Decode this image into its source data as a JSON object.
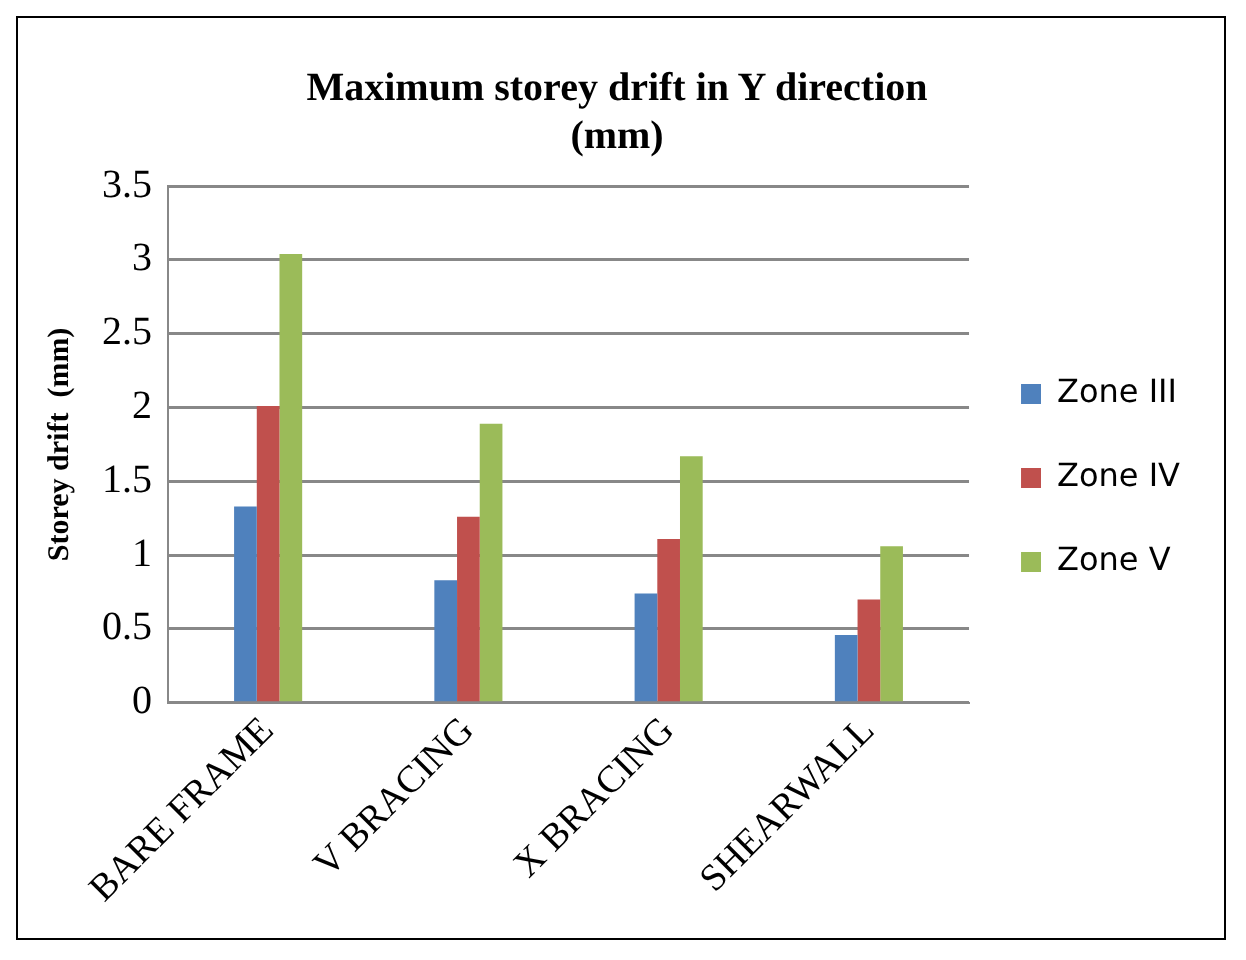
{
  "chart_data": {
    "type": "bar",
    "title": "Maximum storey drift in Y direction (mm)",
    "ylabel": "Storey drift  (mm)",
    "categories": [
      "BARE FRAME",
      "V BRACING",
      "X BRACING",
      "SHEARWALL"
    ],
    "series": [
      {
        "name": "Zone III",
        "color": "#4f81bd",
        "values": [
          1.33,
          0.83,
          0.74,
          0.46
        ]
      },
      {
        "name": "Zone IV",
        "color": "#c0504d",
        "values": [
          2.01,
          1.26,
          1.11,
          0.7
        ]
      },
      {
        "name": "Zone V",
        "color": "#9bbb59",
        "values": [
          3.04,
          1.89,
          1.67,
          1.06
        ]
      }
    ],
    "ylim": [
      0,
      3.5
    ],
    "yticks": [
      0,
      0.5,
      1,
      1.5,
      2,
      2.5,
      3,
      3.5
    ],
    "grid": "y",
    "legend": "right"
  }
}
